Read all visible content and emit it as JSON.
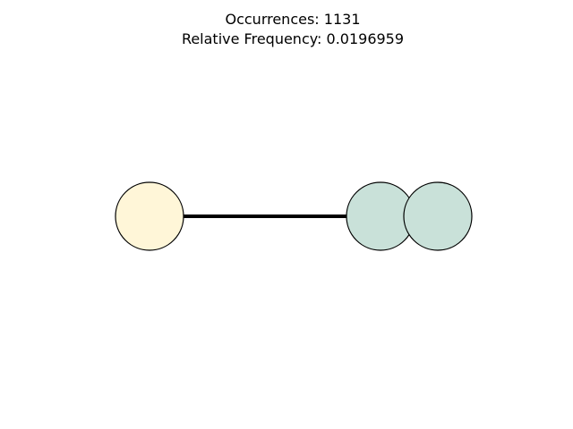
{
  "title": {
    "occurrences": "Occurrences: 1131",
    "relative_frequency": "Relative Frequency: 0.0196959"
  },
  "graph": {
    "nodes": [
      {
        "id": "node-a",
        "fill": "#fff6d8",
        "stroke": "#000000"
      },
      {
        "id": "node-b",
        "fill": "#c9e1d9",
        "stroke": "#000000"
      },
      {
        "id": "node-c",
        "fill": "#c9e1d9",
        "stroke": "#000000"
      }
    ],
    "edges": [
      {
        "from": "node-a",
        "to": "node-b",
        "color": "#000000"
      }
    ]
  }
}
